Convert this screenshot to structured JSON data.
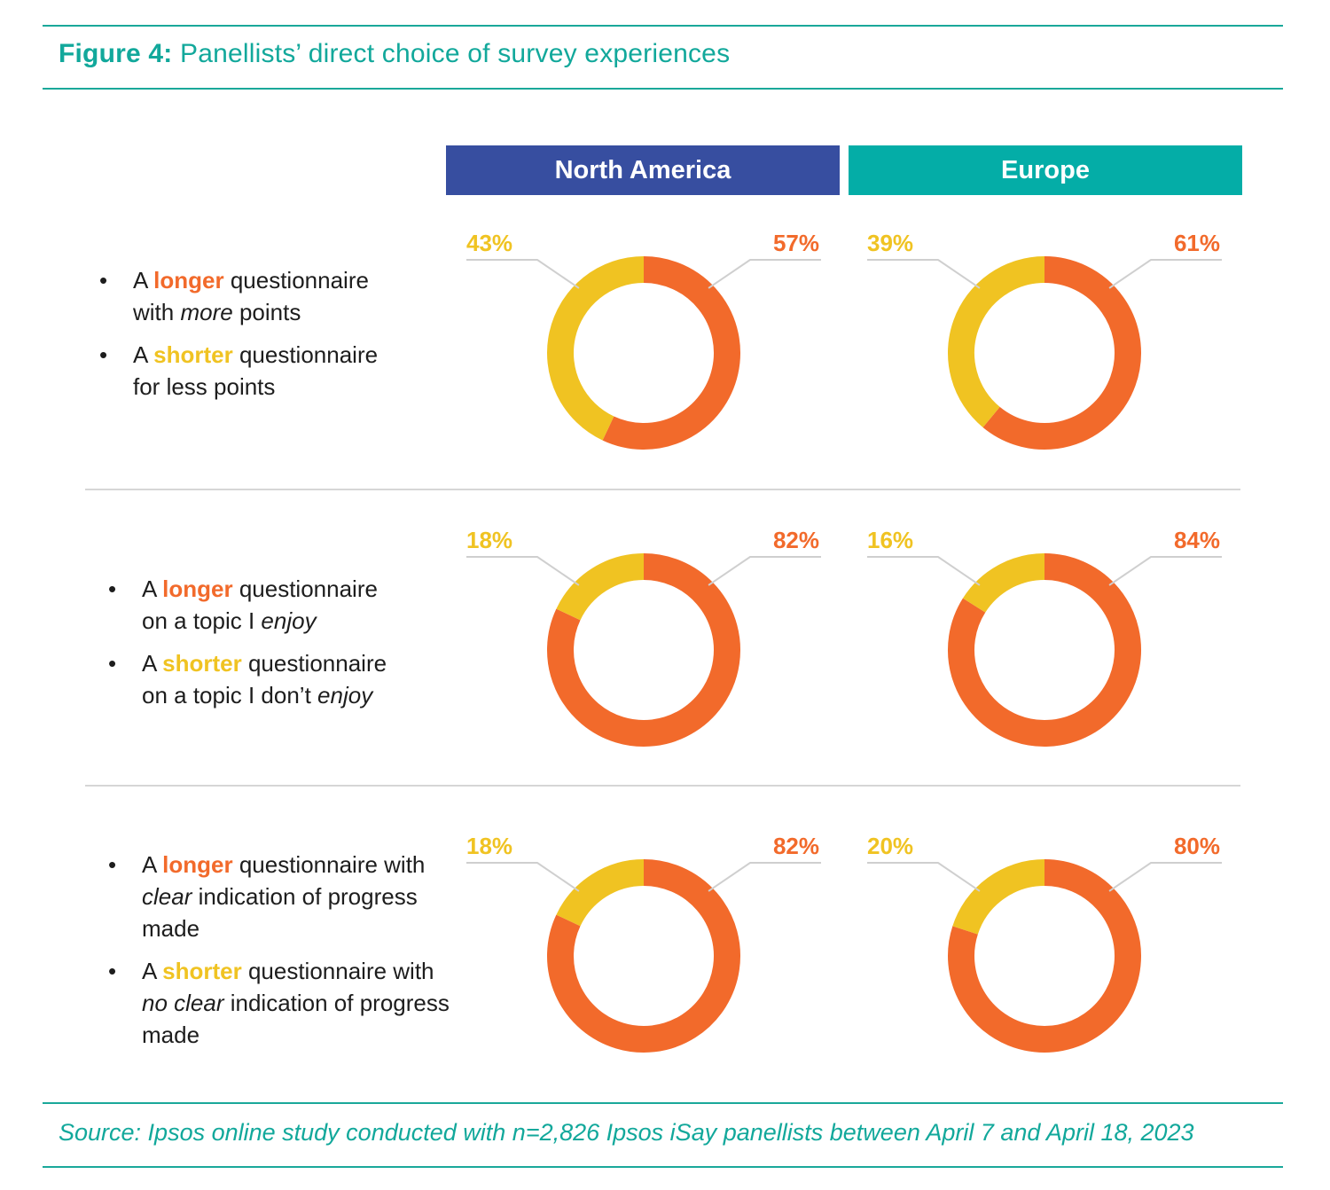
{
  "title": {
    "label": "Figure 4:",
    "text": "Panellists’ direct choice of survey experiences"
  },
  "regions": [
    {
      "name": "North America",
      "color": "#374ea0"
    },
    {
      "name": "Europe",
      "color": "#04ada7"
    }
  ],
  "colors": {
    "longer": "#f26a2b",
    "shorter": "#f0c322",
    "leader": "#cfcfcf"
  },
  "questions": [
    {
      "options": [
        {
          "bullet": "•",
          "pre": "A ",
          "kw": "longer",
          "post": " questionnaire",
          "line2_a": "with ",
          "line2_em": "more",
          "line2_b": " points"
        },
        {
          "bullet": "•",
          "pre": "A ",
          "kw": "shorter",
          "post": " questionnaire",
          "line2_a": "for less points",
          "line2_em": "",
          "line2_b": ""
        }
      ]
    },
    {
      "options": [
        {
          "bullet": "•",
          "pre": "A ",
          "kw": "longer",
          "post": " questionnaire",
          "line2_a": "on a topic I ",
          "line2_em": "enjoy",
          "line2_b": ""
        },
        {
          "bullet": "•",
          "pre": "A ",
          "kw": "shorter",
          "post": " questionnaire",
          "line2_a": "on a topic I don’t ",
          "line2_em": "enjoy",
          "line2_b": ""
        }
      ]
    },
    {
      "options": [
        {
          "bullet": "•",
          "pre": "A ",
          "kw": "longer",
          "post": " questionnaire with",
          "line2_a": "",
          "line2_em": "clear",
          "line2_b": " indication of progress",
          "line3": "made"
        },
        {
          "bullet": "•",
          "pre": "A ",
          "kw": "shorter",
          "post": " questionnaire with",
          "line2_a": "",
          "line2_em": "no clear",
          "line2_b": " indication of progress",
          "line3": "made"
        }
      ]
    }
  ],
  "chart_data": {
    "type": "donut-grid",
    "columns": [
      "North America",
      "Europe"
    ],
    "series_names": [
      "Longer",
      "Shorter"
    ],
    "rows": [
      {
        "North America": {
          "longer": 57,
          "shorter": 43,
          "longer_label": "57%",
          "shorter_label": "43%"
        },
        "Europe": {
          "longer": 61,
          "shorter": 39,
          "longer_label": "61%",
          "shorter_label": "39%"
        }
      },
      {
        "North America": {
          "longer": 82,
          "shorter": 18,
          "longer_label": "82%",
          "shorter_label": "18%"
        },
        "Europe": {
          "longer": 84,
          "shorter": 16,
          "longer_label": "84%",
          "shorter_label": "16%"
        }
      },
      {
        "North America": {
          "longer": 82,
          "shorter": 18,
          "longer_label": "82%",
          "shorter_label": "18%"
        },
        "Europe": {
          "longer": 80,
          "shorter": 20,
          "longer_label": "80%",
          "shorter_label": "20%"
        }
      }
    ]
  },
  "source": "Source: Ipsos online study conducted with n=2,826 Ipsos iSay panellists between April 7 and April 18, 2023"
}
